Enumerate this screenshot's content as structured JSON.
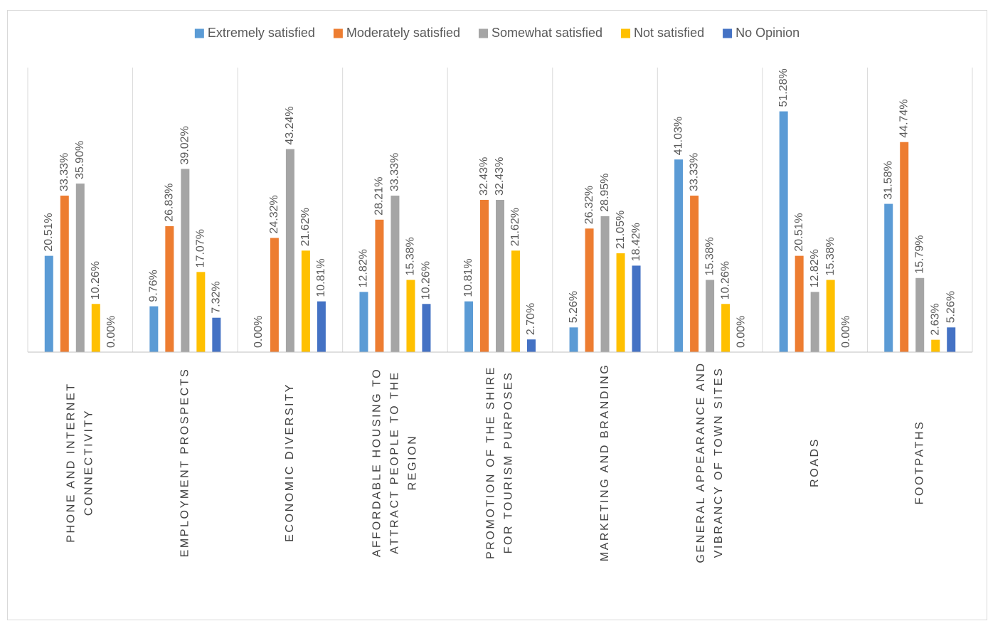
{
  "title": "",
  "colors": {
    "extremely": "#5B9BD5",
    "moderately": "#ED7D31",
    "somewhat": "#A5A5A5",
    "not": "#FFC000",
    "none": "#4472C4",
    "grid": "#d9d9d9",
    "axis": "#bfbfbf",
    "label": "#595959"
  },
  "chart_data": {
    "type": "bar",
    "ylim": [
      0,
      60
    ],
    "grid": "vertical category separators",
    "legend_position": "top",
    "categories": [
      [
        "PHONE AND INTERNET",
        "CONNECTIVITY"
      ],
      [
        "EMPLOYMENT PROSPECTS"
      ],
      [
        "ECONOMIC DIVERSITY"
      ],
      [
        "AFFORDABLE HOUSING TO",
        "ATTRACT PEOPLE TO THE",
        "REGION"
      ],
      [
        "PROMOTION OF THE SHIRE",
        "FOR TOURISM PURPOSES"
      ],
      [
        "MARKETING AND BRANDING"
      ],
      [
        "GENERAL APPEARANCE AND",
        "VIBRANCY OF TOWN SITES"
      ],
      [
        "ROADS"
      ],
      [
        "FOOTPATHS"
      ]
    ],
    "series": [
      {
        "name": "Extremely satisfied",
        "color_key": "extremely",
        "values": [
          20.51,
          9.76,
          0.0,
          12.82,
          10.81,
          5.26,
          41.03,
          51.28,
          31.58
        ]
      },
      {
        "name": "Moderately satisfied",
        "color_key": "moderately",
        "values": [
          33.33,
          26.83,
          24.32,
          28.21,
          32.43,
          26.32,
          33.33,
          20.51,
          44.74
        ]
      },
      {
        "name": "Somewhat satisfied",
        "color_key": "somewhat",
        "values": [
          35.9,
          39.02,
          43.24,
          33.33,
          32.43,
          28.95,
          15.38,
          12.82,
          15.79
        ]
      },
      {
        "name": "Not satisfied",
        "color_key": "not",
        "values": [
          10.26,
          17.07,
          21.62,
          15.38,
          21.62,
          21.05,
          10.26,
          15.38,
          2.63
        ]
      },
      {
        "name": "No Opinion",
        "color_key": "none",
        "values": [
          0.0,
          7.32,
          10.81,
          10.26,
          2.7,
          18.42,
          0.0,
          0.0,
          5.26
        ]
      }
    ],
    "value_format": "percent_2dp"
  }
}
